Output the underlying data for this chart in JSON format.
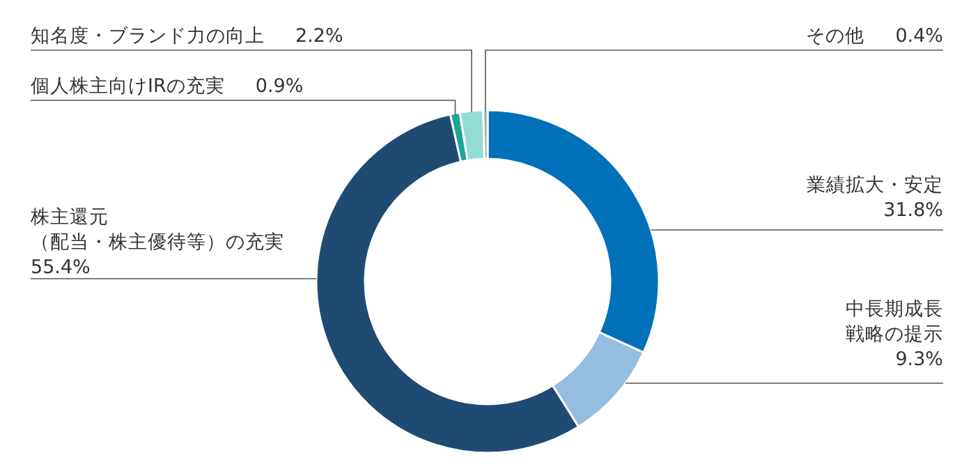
{
  "chart_data": {
    "type": "donut",
    "categories": [
      "業績拡大・安定",
      "中長期成長戦略の提示",
      "株主還元（配当・株主優待等）の充実",
      "個人株主向けIRの充実",
      "知名度・ブランド力の向上",
      "その他"
    ],
    "values": [
      31.8,
      9.3,
      55.4,
      0.9,
      2.2,
      0.4
    ],
    "value_labels": [
      "31.8%",
      "9.3%",
      "55.4%",
      "0.9%",
      "2.2%",
      "0.4%"
    ],
    "colors": [
      "#0070b9",
      "#94bde0",
      "#1f4a72",
      "#1aa596",
      "#93dcd3",
      "#a6a6a6"
    ]
  }
}
